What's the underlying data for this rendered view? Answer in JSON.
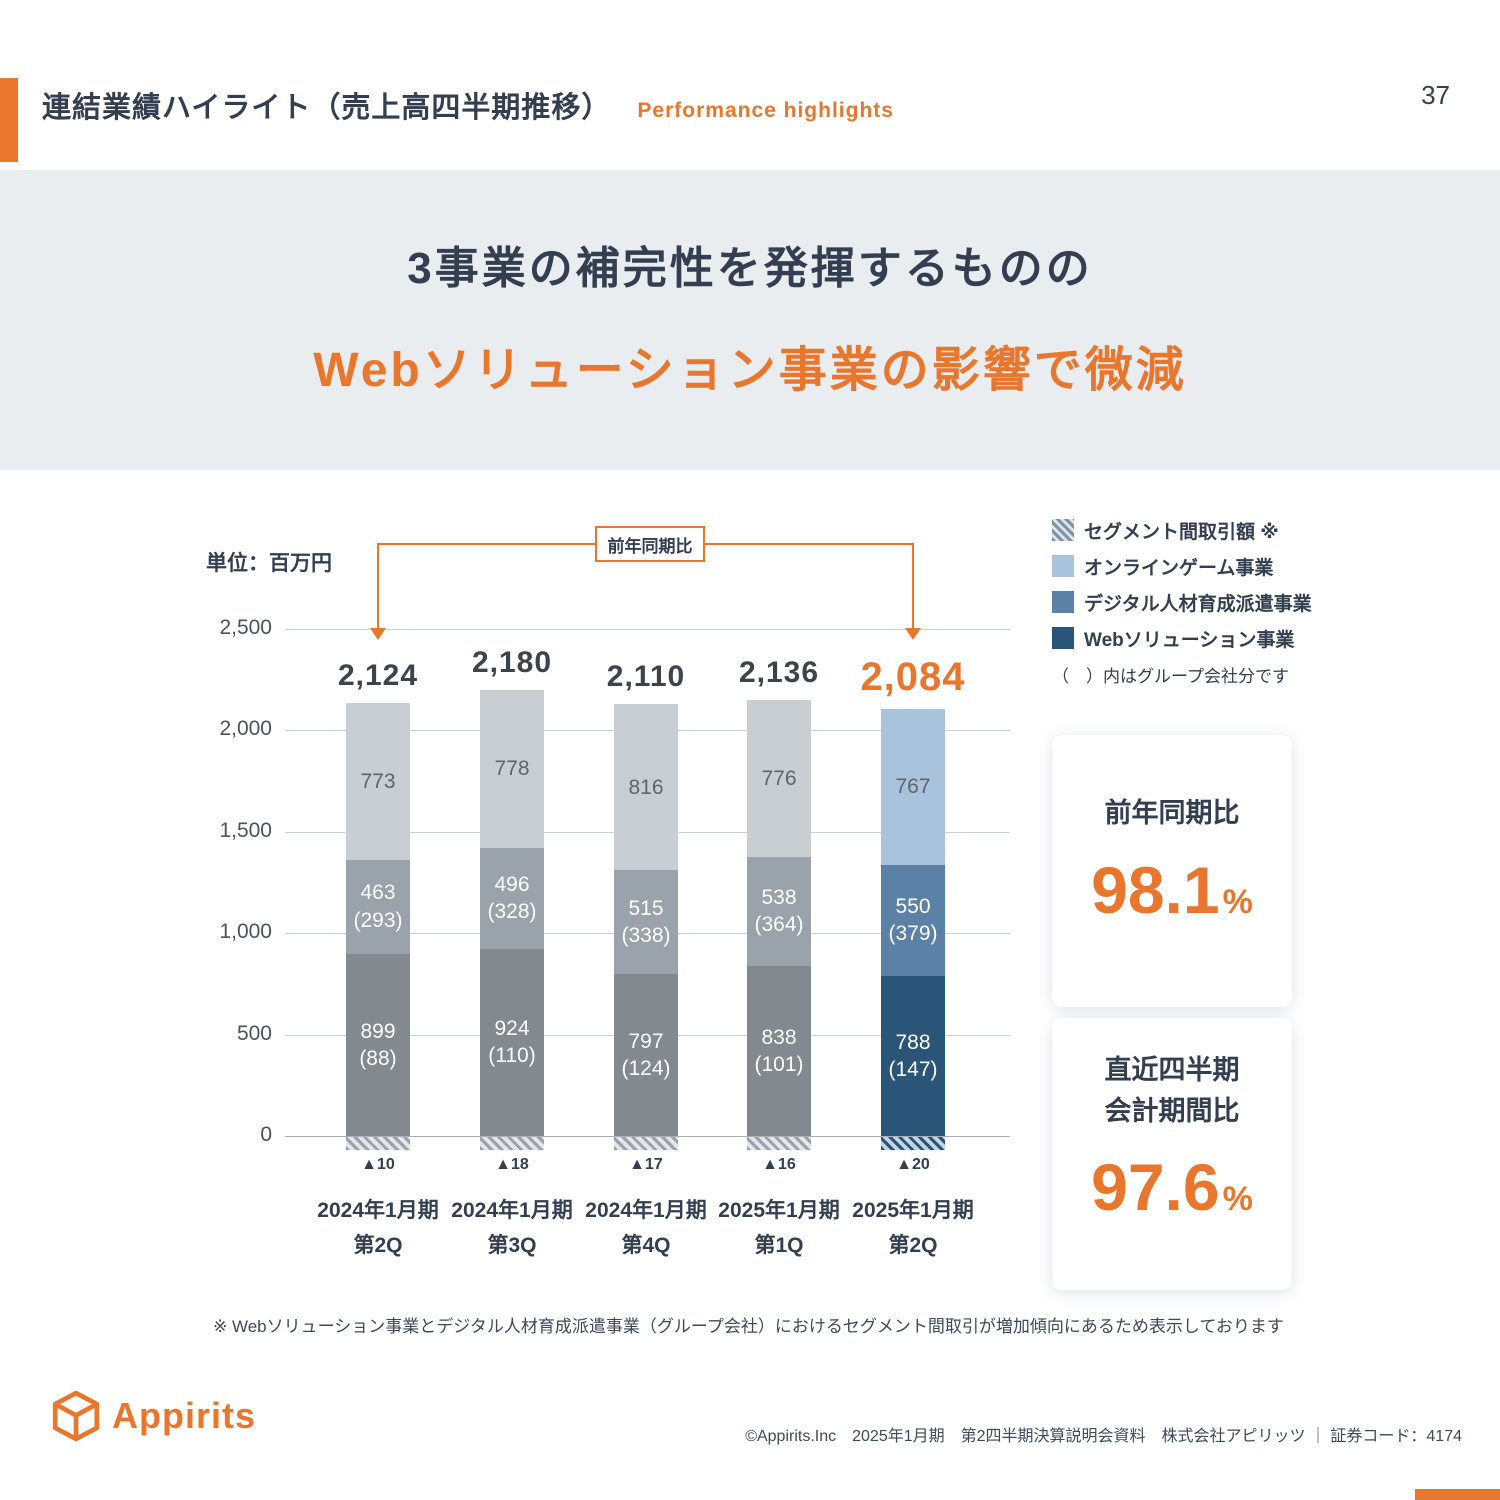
{
  "header": {
    "title": "連結業績ハイライト（売上高四半期推移）",
    "subtitle": "Performance highlights",
    "page_number": "37"
  },
  "banner": {
    "line1": "3事業の補完性を発揮するものの",
    "line2": "Webソリューション事業の影響で微減"
  },
  "kpi_cards": [
    {
      "title_line1": "前年同期比",
      "value": "98.1",
      "unit": "%"
    },
    {
      "title_line1": "直近四半期",
      "title_line2": "会計期間比",
      "value": "97.6",
      "unit": "%"
    }
  ],
  "footnote": "※ Webソリューション事業とデジタル人材育成派遣事業（グループ会社）におけるセグメント間取引が増加傾向にあるため表示しております",
  "footer": {
    "logo_text": "Appirits",
    "credit": "©Appirits.Inc　2025年1月期　第2四半期決算説明会資料　株式会社アピリッツ ｜ 証券コード：4174"
  },
  "chart_data": {
    "type": "bar",
    "stacked": true,
    "unit_label": "単位：百万円",
    "callout_label": "前年同期比",
    "ylim": [
      0,
      2500
    ],
    "ytick_values": [
      0,
      500,
      1000,
      1500,
      2000,
      2500
    ],
    "ytick_labels": [
      "0",
      "500",
      "1,000",
      "1,500",
      "2,000",
      "2,500"
    ],
    "categories": [
      {
        "line1": "2024年1月期",
        "line2": "第2Q"
      },
      {
        "line1": "2024年1月期",
        "line2": "第3Q"
      },
      {
        "line1": "2024年1月期",
        "line2": "第4Q"
      },
      {
        "line1": "2025年1月期",
        "line2": "第1Q"
      },
      {
        "line1": "2025年1月期",
        "line2": "第2Q"
      }
    ],
    "totals": [
      "2,124",
      "2,180",
      "2,110",
      "2,136",
      "2,084"
    ],
    "series": [
      {
        "key": "web",
        "name": "Webソリューション事業",
        "values": [
          899,
          924,
          797,
          838,
          788
        ],
        "group_labels": [
          "(88)",
          "(110)",
          "(124)",
          "(101)",
          "(147)"
        ]
      },
      {
        "key": "hr",
        "name": "デジタル人材育成派遣事業",
        "values": [
          463,
          496,
          515,
          538,
          550
        ],
        "group_labels": [
          "(293)",
          "(328)",
          "(338)",
          "(364)",
          "(379)"
        ]
      },
      {
        "key": "game",
        "name": "オンラインゲーム事業",
        "values": [
          773,
          778,
          816,
          776,
          767
        ],
        "group_labels": null
      }
    ],
    "eliminations": {
      "name": "セグメント間取引額",
      "labels": [
        "▲10",
        "▲18",
        "▲17",
        "▲16",
        "▲20"
      ]
    },
    "highlight_index": 4,
    "legend": [
      {
        "label": "セグメント間取引額 ※",
        "swatch": "hatch"
      },
      {
        "label": "オンラインゲーム事業",
        "swatch": "game"
      },
      {
        "label": "デジタル人材育成派遣事業",
        "swatch": "hr"
      },
      {
        "label": "Webソリューション事業",
        "swatch": "web"
      }
    ],
    "legend_note": "（　）内はグループ会社分です",
    "colors": {
      "accent_orange": "#e8762c",
      "navy_text": "#333f50",
      "gray_bar": {
        "web": "#82898f",
        "hr": "#9aa2ab",
        "game": "#c9ced3"
      },
      "blue_bar": {
        "web": "#2a5578",
        "hr": "#5b82a6",
        "game": "#a9c3dc"
      },
      "segment_label_light": "#ffffff",
      "segment_label_dark": "#5d656e"
    }
  }
}
